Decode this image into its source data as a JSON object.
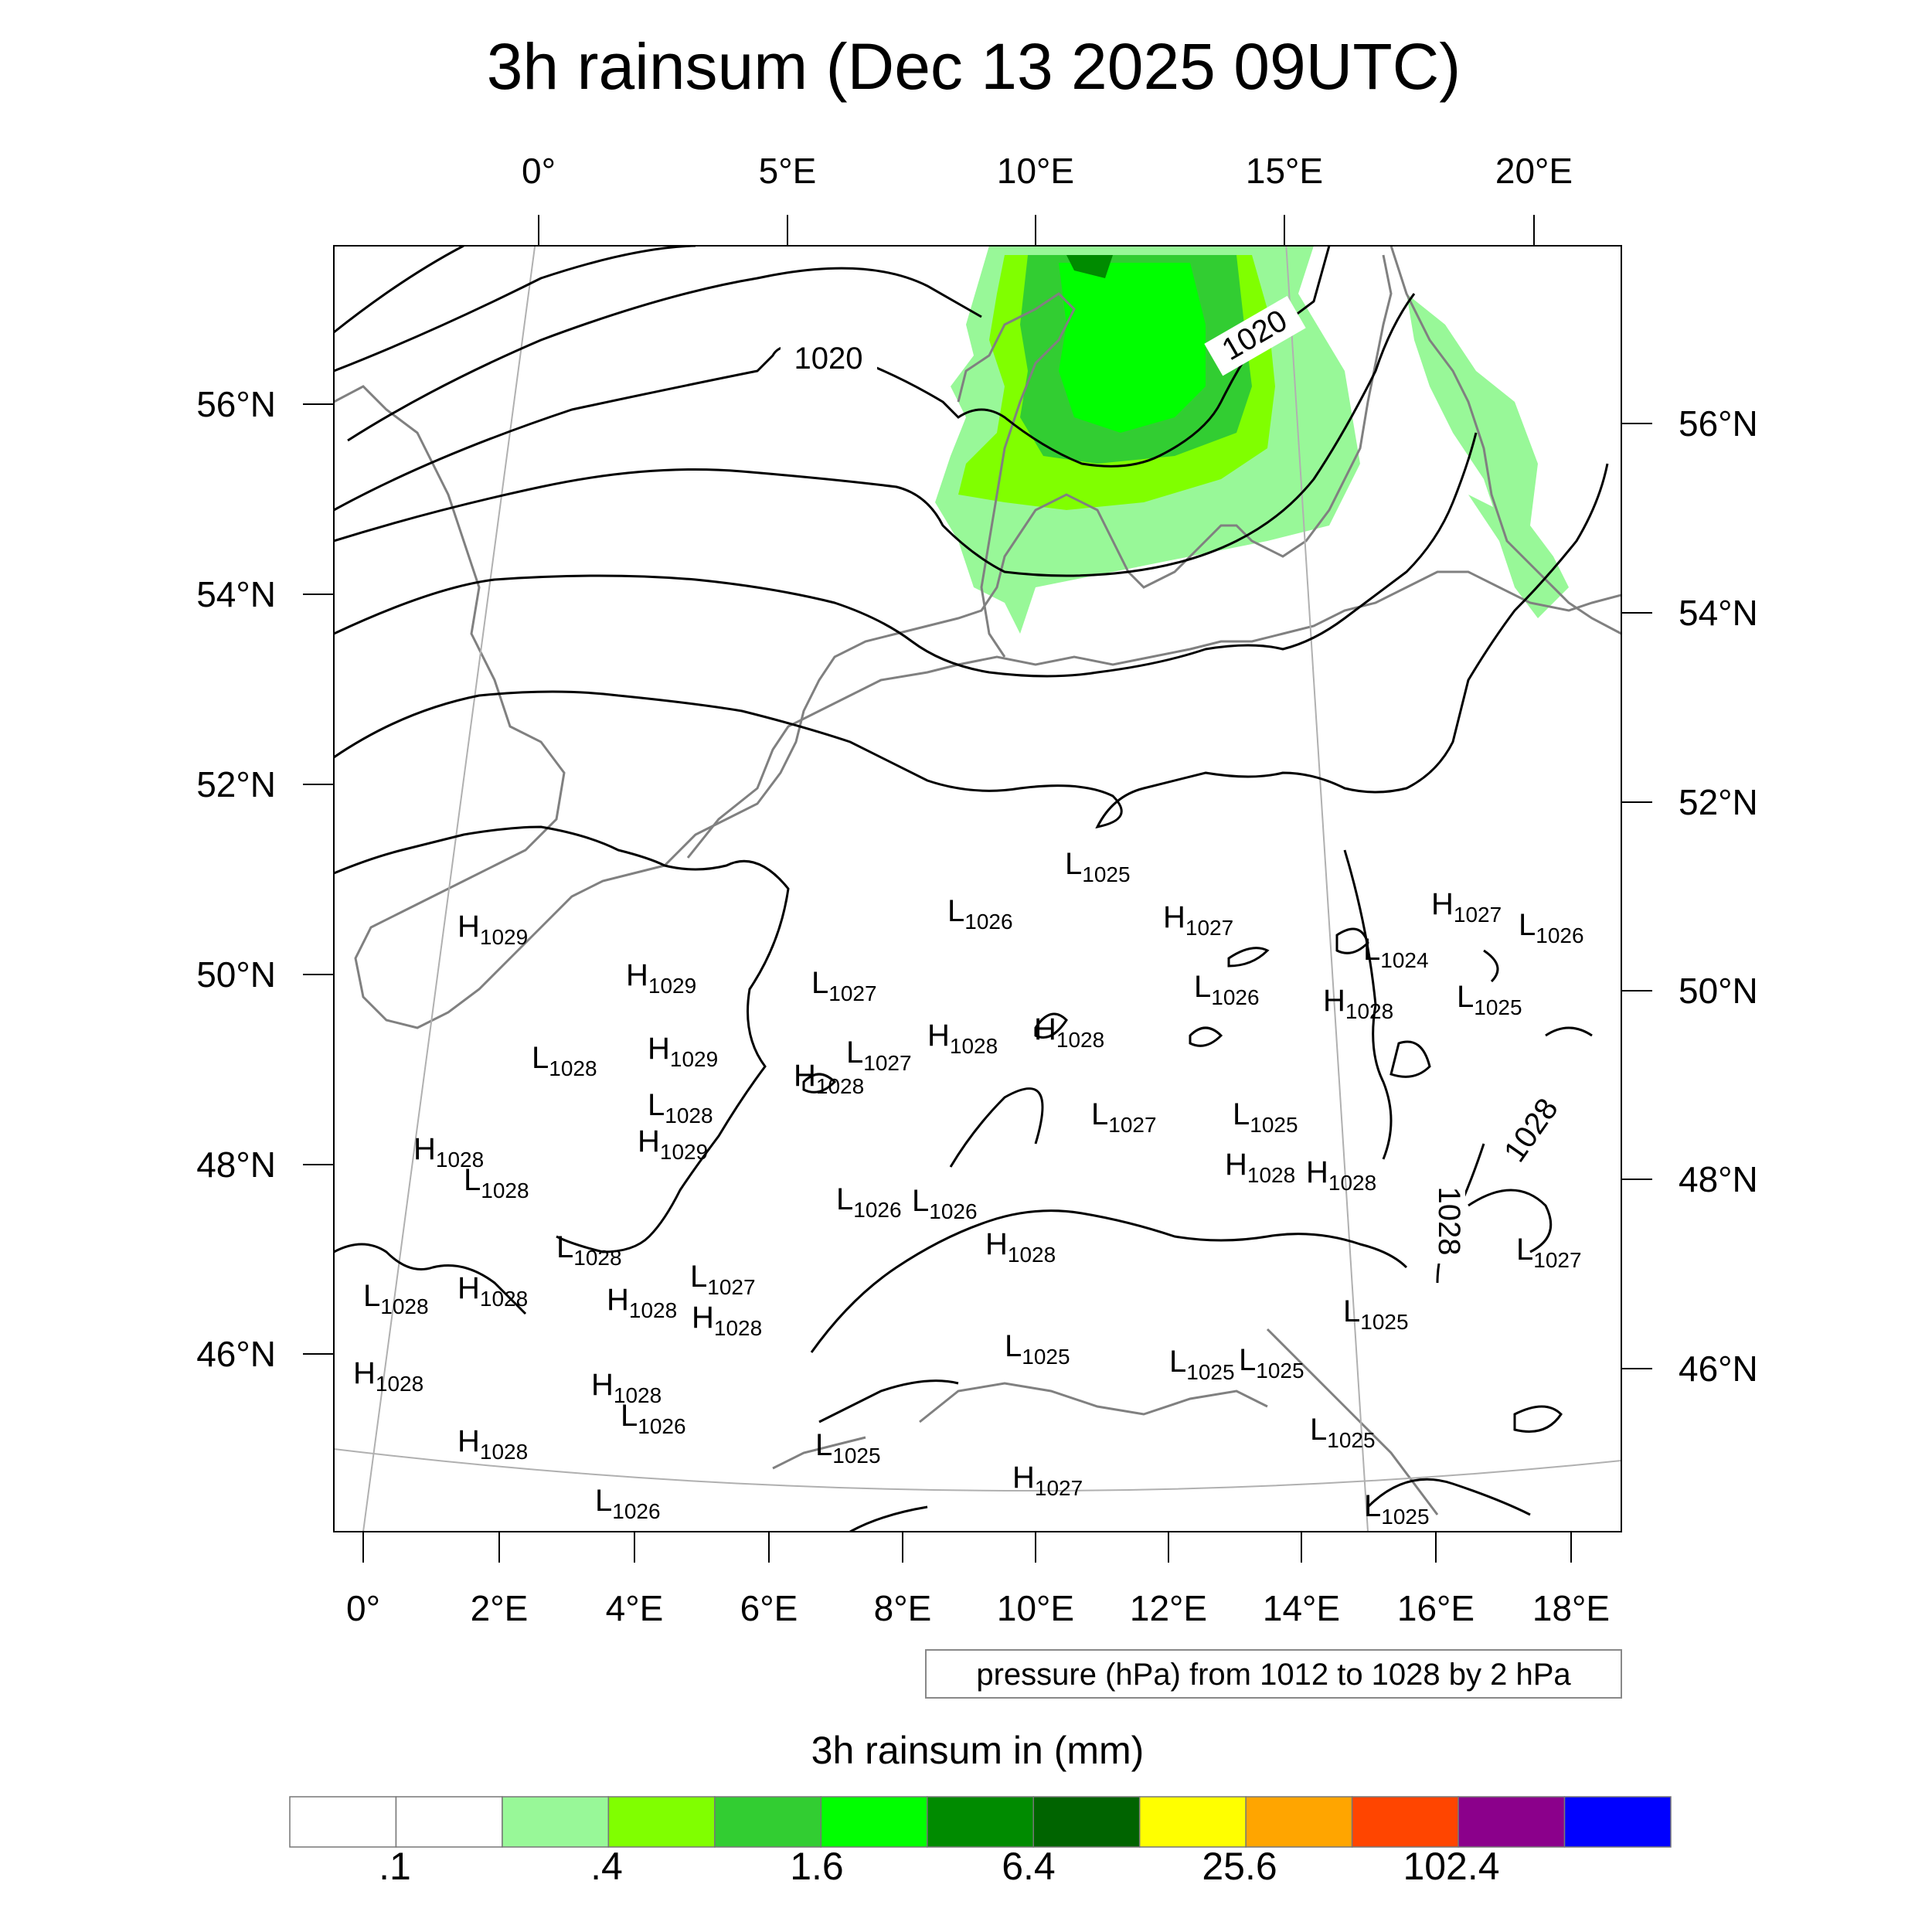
{
  "title": "3h rainsum (Dec 13 2025 09UTC)",
  "top_lon_labels": [
    "0°",
    "5°E",
    "10°E",
    "15°E",
    "20°E"
  ],
  "bottom_lon_labels": [
    "0°",
    "2°E",
    "4°E",
    "6°E",
    "8°E",
    "10°E",
    "12°E",
    "14°E",
    "16°E",
    "18°E"
  ],
  "left_lat_labels": [
    "56°N",
    "54°N",
    "52°N",
    "50°N",
    "48°N",
    "46°N"
  ],
  "right_lat_labels": [
    "56°N",
    "54°N",
    "52°N",
    "50°N",
    "48°N",
    "46°N"
  ],
  "contour_labels": [
    "1020",
    "1020",
    "1028",
    "1028"
  ],
  "pressure_markers": [
    {
      "t": "L",
      "v": "1025"
    },
    {
      "t": "H",
      "v": "1029"
    },
    {
      "t": "L",
      "v": "1026"
    },
    {
      "t": "H",
      "v": "1027"
    },
    {
      "t": "H",
      "v": "1027"
    },
    {
      "t": "L",
      "v": "1026"
    },
    {
      "t": "L",
      "v": "1024"
    },
    {
      "t": "H",
      "v": "1029"
    },
    {
      "t": "L",
      "v": "1027"
    },
    {
      "t": "L",
      "v": "1026"
    },
    {
      "t": "H",
      "v": "1028"
    },
    {
      "t": "L",
      "v": "1025"
    },
    {
      "t": "H",
      "v": "1029"
    },
    {
      "t": "L",
      "v": "1027"
    },
    {
      "t": "H",
      "v": "1028"
    },
    {
      "t": "H",
      "v": "1028"
    },
    {
      "t": "L",
      "v": "1028"
    },
    {
      "t": "H",
      "v": "1028"
    },
    {
      "t": "L",
      "v": "1028"
    },
    {
      "t": "L",
      "v": "1027"
    },
    {
      "t": "L",
      "v": "1025"
    },
    {
      "t": "H",
      "v": "1029"
    },
    {
      "t": "H",
      "v": "1028"
    },
    {
      "t": "H",
      "v": "1028"
    },
    {
      "t": "H",
      "v": "1028"
    },
    {
      "t": "L",
      "v": "1028"
    },
    {
      "t": "L",
      "v": "1026"
    },
    {
      "t": "L",
      "v": "1026"
    },
    {
      "t": "H",
      "v": "1028"
    },
    {
      "t": "L",
      "v": "1028"
    },
    {
      "t": "L",
      "v": "1027"
    },
    {
      "t": "L",
      "v": "1027"
    },
    {
      "t": "L",
      "v": "1028"
    },
    {
      "t": "H",
      "v": "1028"
    },
    {
      "t": "H",
      "v": "1028"
    },
    {
      "t": "H",
      "v": "1028"
    },
    {
      "t": "L",
      "v": "1025"
    },
    {
      "t": "H",
      "v": "1028"
    },
    {
      "t": "L",
      "v": "1025"
    },
    {
      "t": "L",
      "v": "1025"
    },
    {
      "t": "L",
      "v": "1025"
    },
    {
      "t": "H",
      "v": "1028"
    },
    {
      "t": "L",
      "v": "1026"
    },
    {
      "t": "H",
      "v": "1028"
    },
    {
      "t": "L",
      "v": "1025"
    },
    {
      "t": "L",
      "v": "1025"
    },
    {
      "t": "L",
      "v": "1026"
    },
    {
      "t": "H",
      "v": "1027"
    },
    {
      "t": "L",
      "v": "1025"
    }
  ],
  "info_box": "pressure (hPa) from 1012 to 1028 by 2 hPa",
  "colorbar": {
    "title": "3h rainsum in (mm)",
    "colors": [
      "#ffffff",
      "#ffffff",
      "#98f898",
      "#80ff00",
      "#32cd32",
      "#00ff00",
      "#008b00",
      "#006400",
      "#ffff00",
      "#ffa500",
      "#ff4500",
      "#8b008b",
      "#0000ff"
    ],
    "labels": [
      ".1",
      ".4",
      "1.6",
      "6.4",
      "25.6",
      "102.4"
    ]
  }
}
